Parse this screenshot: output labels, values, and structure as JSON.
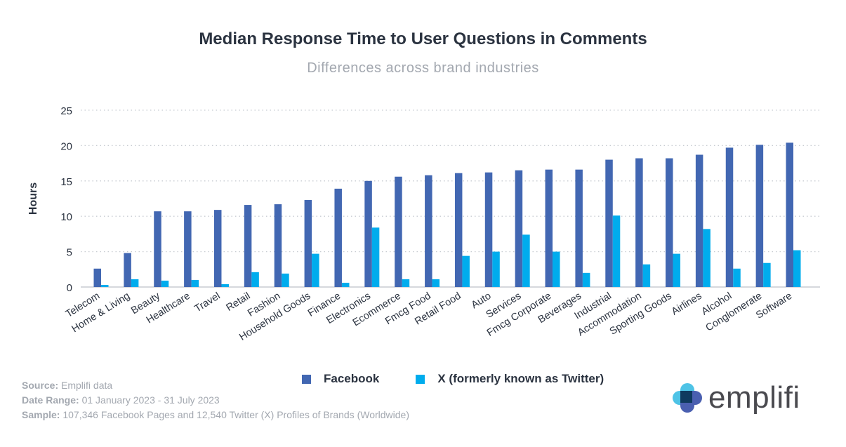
{
  "chart_data": {
    "type": "bar",
    "title": "Median Response Time to User Questions in Comments",
    "subtitle": "Differences across brand industries",
    "xlabel": "",
    "ylabel": "Hours",
    "ylim": [
      0,
      25
    ],
    "yticks": [
      0,
      5,
      10,
      15,
      20,
      25
    ],
    "grid": true,
    "legend_position": "bottom",
    "categories": [
      "Telecom",
      "Home & Living",
      "Beauty",
      "Healthcare",
      "Travel",
      "Retail",
      "Fashion",
      "Household Goods",
      "Finance",
      "Electronics",
      "Ecommerce",
      "Fmcg Food",
      "Retail Food",
      "Auto",
      "Services",
      "Fmcg Corporate",
      "Beverages",
      "Industrial",
      "Accommodation",
      "Sporting Goods",
      "Airlines",
      "Alcohol",
      "Conglomerate",
      "Software"
    ],
    "series": [
      {
        "name": "Facebook",
        "color": "#4267b2",
        "values": [
          2.6,
          4.8,
          10.7,
          10.7,
          10.9,
          11.6,
          11.7,
          12.3,
          13.9,
          15.0,
          15.6,
          15.8,
          16.1,
          16.2,
          16.5,
          16.6,
          16.6,
          18.0,
          18.2,
          18.2,
          18.7,
          19.7,
          20.1,
          20.4
        ]
      },
      {
        "name": "X (formerly known as Twitter)",
        "color": "#00aced",
        "values": [
          0.3,
          1.1,
          0.9,
          1.0,
          0.4,
          2.1,
          1.9,
          4.7,
          0.6,
          8.4,
          1.1,
          1.1,
          4.4,
          5.0,
          7.4,
          5.0,
          2.0,
          10.1,
          3.2,
          4.7,
          8.2,
          2.6,
          3.4,
          5.2
        ]
      }
    ]
  },
  "footer": {
    "source_label": "Source:",
    "source_value": "Emplifi data",
    "date_label": "Date Range:",
    "date_value": "01 January 2023 - 31 July 2023",
    "sample_label": "Sample:",
    "sample_value": "107,346 Facebook Pages and 12,540 Twitter (X) Profiles of Brands (Worldwide)"
  },
  "logo": {
    "text": "emplifi"
  }
}
